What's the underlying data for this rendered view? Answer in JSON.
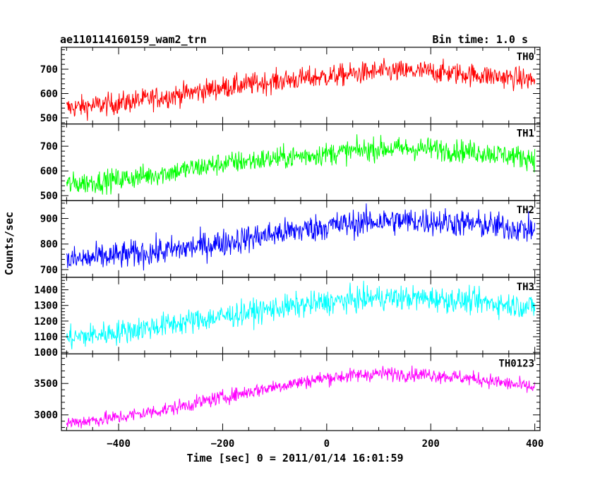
{
  "header": {
    "title": "ae110114160159_wam2_trn",
    "bin_time": "Bin time: 1.0 s"
  },
  "chart_data": {
    "type": "line",
    "title": "ae110114160159_wam2_trn",
    "xlabel": "Time [sec] 0 = 2011/01/14 16:01:59",
    "ylabel": "Counts/sec",
    "xlim": [
      -510,
      410
    ],
    "x_ticks": [
      -400,
      -200,
      0,
      200,
      400
    ],
    "x_tick_labels": [
      "−400",
      "−200",
      "0",
      "200",
      "400"
    ],
    "x_range": [
      -500,
      400
    ],
    "sample_step": 1.0,
    "series": [
      {
        "name": "TH0",
        "color": "#ff0000",
        "ylim": [
          475,
          790
        ],
        "y_ticks": [
          500,
          600,
          700
        ],
        "noise": 32,
        "trend": [
          [
            -500,
            540
          ],
          [
            -400,
            560
          ],
          [
            -300,
            590
          ],
          [
            -200,
            625
          ],
          [
            -100,
            650
          ],
          [
            0,
            670
          ],
          [
            100,
            690
          ],
          [
            200,
            690
          ],
          [
            300,
            675
          ],
          [
            400,
            655
          ]
        ]
      },
      {
        "name": "TH1",
        "color": "#00ff00",
        "ylim": [
          480,
          790
        ],
        "y_ticks": [
          500,
          600,
          700
        ],
        "noise": 32,
        "trend": [
          [
            -500,
            545
          ],
          [
            -400,
            565
          ],
          [
            -300,
            595
          ],
          [
            -200,
            630
          ],
          [
            -100,
            650
          ],
          [
            0,
            670
          ],
          [
            100,
            690
          ],
          [
            200,
            690
          ],
          [
            300,
            675
          ],
          [
            400,
            650
          ]
        ]
      },
      {
        "name": "TH2",
        "color": "#0000ff",
        "ylim": [
          670,
          970
        ],
        "y_ticks": [
          700,
          800,
          900
        ],
        "noise": 38,
        "trend": [
          [
            -500,
            735
          ],
          [
            -400,
            755
          ],
          [
            -300,
            775
          ],
          [
            -200,
            805
          ],
          [
            -100,
            840
          ],
          [
            0,
            870
          ],
          [
            100,
            890
          ],
          [
            200,
            890
          ],
          [
            300,
            875
          ],
          [
            400,
            855
          ]
        ]
      },
      {
        "name": "TH3",
        "color": "#00ffff",
        "ylim": [
          990,
          1480
        ],
        "y_ticks": [
          1000,
          1100,
          1200,
          1300,
          1400
        ],
        "noise": 55,
        "trend": [
          [
            -500,
            1090
          ],
          [
            -400,
            1130
          ],
          [
            -300,
            1180
          ],
          [
            -200,
            1230
          ],
          [
            -100,
            1280
          ],
          [
            0,
            1320
          ],
          [
            100,
            1350
          ],
          [
            200,
            1345
          ],
          [
            300,
            1320
          ],
          [
            400,
            1290
          ]
        ]
      },
      {
        "name": "TH0123",
        "color": "#ff00ff",
        "ylim": [
          2750,
          3970
        ],
        "y_ticks": [
          3000,
          3500
        ],
        "y_minor_ticks": [
          2800,
          2900,
          3100,
          3200,
          3300,
          3400,
          3600,
          3700,
          3800,
          3900
        ],
        "noise": 80,
        "trend": [
          [
            -500,
            2870
          ],
          [
            -400,
            2960
          ],
          [
            -300,
            3100
          ],
          [
            -200,
            3280
          ],
          [
            -100,
            3450
          ],
          [
            0,
            3590
          ],
          [
            100,
            3660
          ],
          [
            200,
            3640
          ],
          [
            300,
            3560
          ],
          [
            400,
            3430
          ]
        ]
      }
    ]
  }
}
